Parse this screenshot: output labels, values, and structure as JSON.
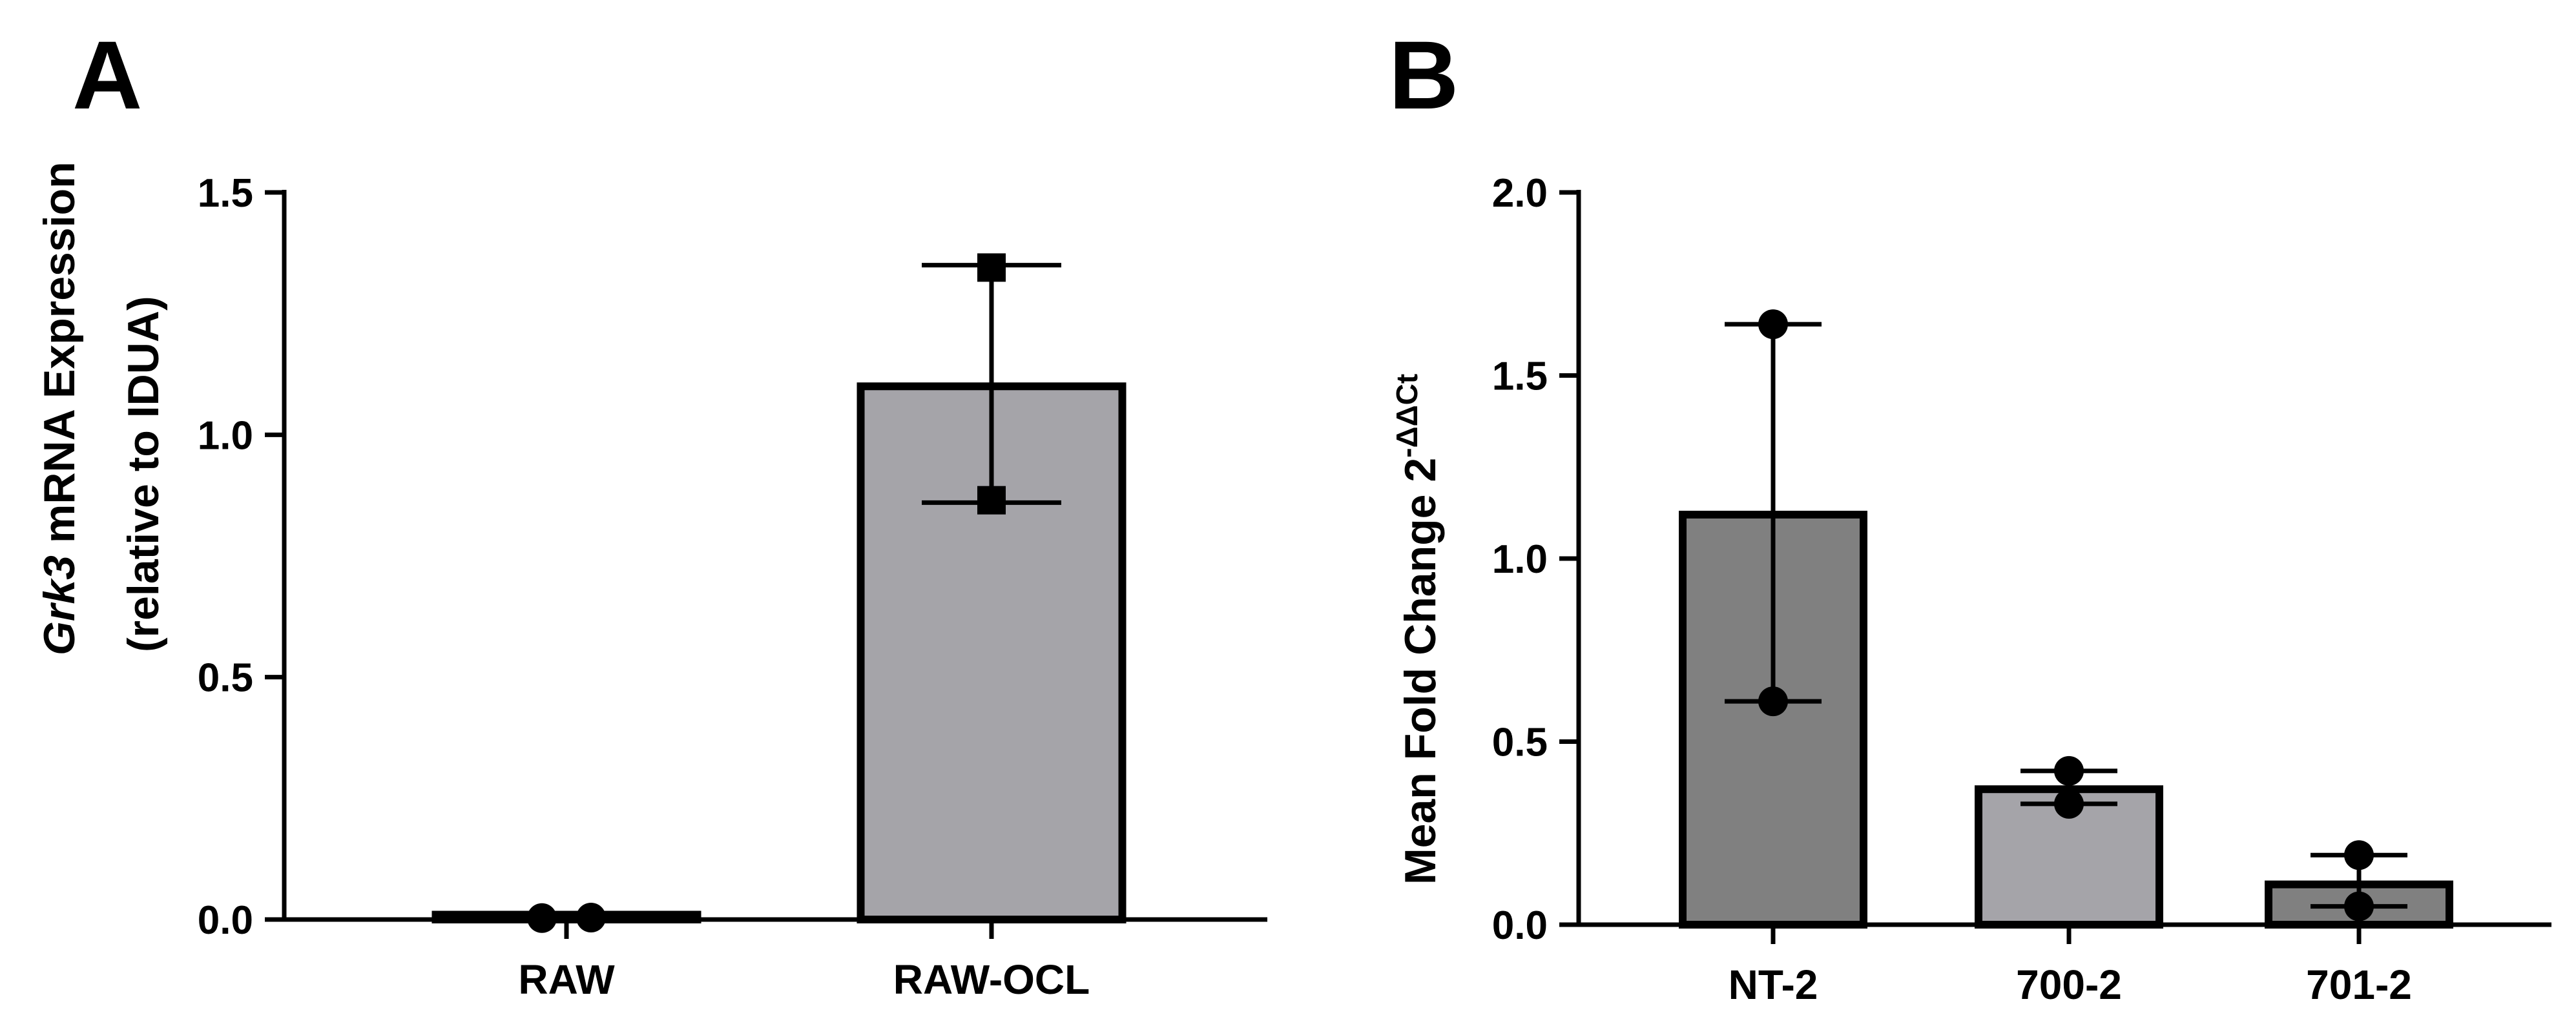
{
  "chart_data": [
    {
      "panel": "A",
      "type": "bar",
      "ylabel_italic": "Grk3",
      "ylabel_rest": " mRNA Expression",
      "ylabel_line2": "(relative to IDUA)",
      "ylim": [
        0,
        1.5
      ],
      "yticks": [
        0.0,
        0.5,
        1.0,
        1.5
      ],
      "ytick_labels": [
        "0.0",
        "0.5",
        "1.0",
        "1.5"
      ],
      "categories": [
        "RAW",
        "RAW-OCL"
      ],
      "values": [
        0.01,
        1.1
      ],
      "error_high": [
        0.01,
        1.35
      ],
      "error_low": [
        0.0,
        0.86
      ],
      "points": [
        [
          0.003,
          0.004
        ],
        [
          1.345,
          0.865
        ]
      ],
      "marker": [
        "circle",
        "square"
      ],
      "colors": [
        "#1a1a1a",
        "#a5a4a9"
      ]
    },
    {
      "panel": "B",
      "type": "bar",
      "ylabel": "Mean Fold Change 2",
      "ylabel_sup": "-ΔΔCt",
      "ylim": [
        0,
        2.0
      ],
      "yticks": [
        0.0,
        0.5,
        1.0,
        1.5,
        2.0
      ],
      "ytick_labels": [
        "0.0",
        "0.5",
        "1.0",
        "1.5",
        "2.0"
      ],
      "categories": [
        "NT-2",
        "700-2",
        "701-2"
      ],
      "values": [
        1.12,
        0.37,
        0.11
      ],
      "error_high": [
        1.64,
        0.42,
        0.19
      ],
      "error_low": [
        0.61,
        0.33,
        0.05
      ],
      "points": [
        [
          1.64,
          0.61
        ],
        [
          0.42,
          0.33
        ],
        [
          0.19,
          0.05
        ]
      ],
      "marker": [
        "circle",
        "circle",
        "circle"
      ],
      "colors": [
        "#808080",
        "#a5a4a9",
        "#808080"
      ]
    }
  ]
}
